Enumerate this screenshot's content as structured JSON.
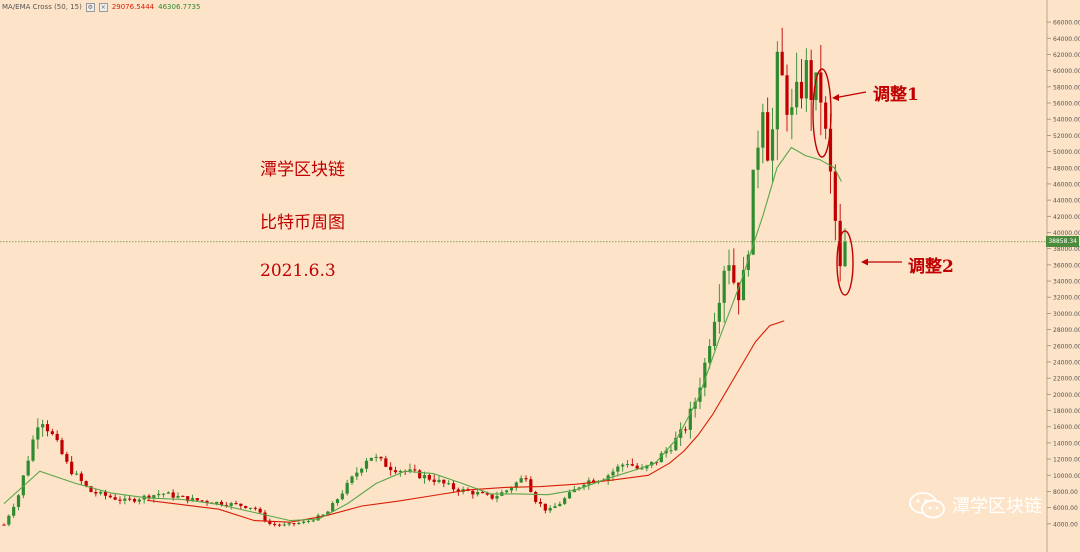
{
  "legend": {
    "indicator_name": "MA/EMA Cross (50, 15)",
    "value_ma": "29076.5444",
    "value_ema": "46306.7735",
    "colors": {
      "ma": "#d81e06",
      "ema": "#2e8b2e"
    }
  },
  "overlay": {
    "line1": "潭学区块链",
    "line2": "比特币周图",
    "line3": "2021.6.3"
  },
  "annotations": {
    "adjust1": "调整1",
    "adjust2": "调整2",
    "color": "#c00000"
  },
  "watermark": {
    "text": "潭学区块链",
    "icon": "wechat-icon"
  },
  "current_price": "38858.34",
  "chart_data": {
    "type": "candlestick",
    "axis_ticks": [
      "66000.00",
      "64000.00",
      "62000.00",
      "60000.00",
      "58000.00",
      "56000.00",
      "54000.00",
      "52000.00",
      "50000.00",
      "48000.00",
      "46000.00",
      "44000.00",
      "42000.00",
      "40000.00",
      "38000.00",
      "36000.00",
      "34000.00",
      "32000.00",
      "30000.00",
      "28000.00",
      "26000.00",
      "24000.00",
      "22000.00",
      "20000.00",
      "18000.00",
      "16000.00",
      "14000.00",
      "12000.00",
      "10000.00",
      "8000.00",
      "6000.00",
      "4000.00"
    ],
    "ylim": [
      2000,
      67000
    ],
    "candle_count": 175,
    "colors": {
      "up": "#2e8b2e",
      "down": "#c00000"
    },
    "price_path": [
      [
        0,
        3900
      ],
      [
        4,
        7500
      ],
      [
        10,
        17500
      ],
      [
        14,
        14500
      ],
      [
        18,
        11000
      ],
      [
        24,
        8000
      ],
      [
        34,
        6800
      ],
      [
        44,
        7800
      ],
      [
        52,
        7000
      ],
      [
        60,
        6600
      ],
      [
        66,
        6300
      ],
      [
        70,
        6000
      ],
      [
        74,
        4000
      ],
      [
        78,
        3800
      ],
      [
        84,
        4200
      ],
      [
        90,
        5200
      ],
      [
        96,
        8800
      ],
      [
        102,
        12500
      ],
      [
        108,
        11000
      ],
      [
        114,
        10300
      ],
      [
        120,
        9500
      ],
      [
        126,
        8300
      ],
      [
        132,
        7800
      ],
      [
        136,
        7200
      ],
      [
        140,
        8000
      ],
      [
        146,
        10000
      ],
      [
        148,
        7200
      ],
      [
        152,
        5500
      ],
      [
        156,
        6800
      ],
      [
        162,
        9200
      ],
      [
        168,
        9800
      ],
      [
        174,
        11700
      ],
      [
        178,
        10500
      ],
      [
        182,
        11700
      ],
      [
        186,
        13500
      ],
      [
        190,
        15500
      ],
      [
        193,
        19000
      ],
      [
        196,
        24000
      ],
      [
        198,
        29000
      ],
      [
        200,
        33000
      ],
      [
        202,
        38000
      ],
      [
        204,
        34000
      ],
      [
        206,
        32000
      ],
      [
        208,
        39000
      ],
      [
        210,
        49000
      ],
      [
        212,
        57000
      ],
      [
        214,
        48000
      ],
      [
        216,
        60000
      ],
      [
        218,
        58000
      ],
      [
        220,
        54000
      ],
      [
        222,
        57000
      ],
      [
        224,
        60000
      ],
      [
        226,
        57000
      ],
      [
        228,
        58000
      ],
      [
        230,
        50000
      ],
      [
        232,
        43000
      ],
      [
        233,
        37000
      ],
      [
        234,
        34000
      ],
      [
        235,
        38858
      ]
    ],
    "ma50_path": [
      [
        40,
        6900
      ],
      [
        60,
        5800
      ],
      [
        70,
        4400
      ],
      [
        80,
        4200
      ],
      [
        90,
        5000
      ],
      [
        100,
        6200
      ],
      [
        110,
        6800
      ],
      [
        120,
        7500
      ],
      [
        130,
        8200
      ],
      [
        140,
        8500
      ],
      [
        150,
        8600
      ],
      [
        160,
        8900
      ],
      [
        170,
        9400
      ],
      [
        180,
        10000
      ],
      [
        186,
        11500
      ],
      [
        190,
        13000
      ],
      [
        194,
        15000
      ],
      [
        198,
        17500
      ],
      [
        202,
        20500
      ],
      [
        206,
        23500
      ],
      [
        210,
        26500
      ],
      [
        214,
        28500
      ],
      [
        218,
        29076
      ]
    ],
    "ema15_path": [
      [
        0,
        6500
      ],
      [
        10,
        10500
      ],
      [
        20,
        9000
      ],
      [
        30,
        7800
      ],
      [
        40,
        7200
      ],
      [
        50,
        7000
      ],
      [
        60,
        6400
      ],
      [
        70,
        5400
      ],
      [
        80,
        4400
      ],
      [
        88,
        4600
      ],
      [
        96,
        6500
      ],
      [
        104,
        9000
      ],
      [
        112,
        10500
      ],
      [
        120,
        10200
      ],
      [
        128,
        9000
      ],
      [
        136,
        7700
      ],
      [
        144,
        7700
      ],
      [
        152,
        7600
      ],
      [
        160,
        8200
      ],
      [
        168,
        9500
      ],
      [
        176,
        10600
      ],
      [
        182,
        11500
      ],
      [
        188,
        14500
      ],
      [
        194,
        19500
      ],
      [
        200,
        27000
      ],
      [
        206,
        34000
      ],
      [
        212,
        42000
      ],
      [
        216,
        48000
      ],
      [
        220,
        50500
      ],
      [
        224,
        49500
      ],
      [
        228,
        49000
      ],
      [
        232,
        48000
      ],
      [
        234,
        46307
      ]
    ]
  }
}
